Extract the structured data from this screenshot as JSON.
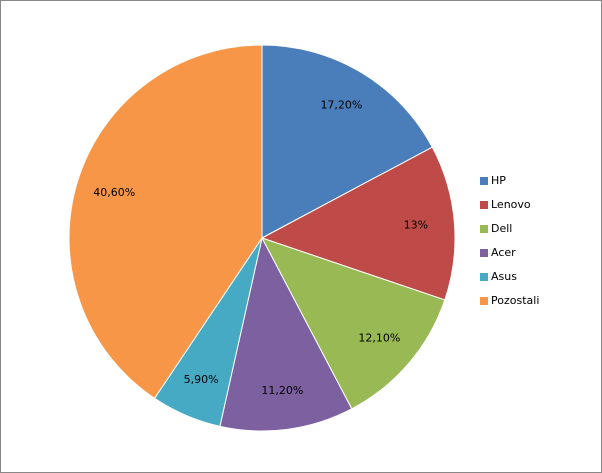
{
  "chart_data": {
    "type": "pie",
    "categories": [
      "HP",
      "Lenovo",
      "Dell",
      "Acer",
      "Asus",
      "Pozostali"
    ],
    "values": [
      17.2,
      13,
      12.1,
      11.2,
      5.9,
      40.6
    ],
    "value_labels": [
      "17,20%",
      "13%",
      "12,10%",
      "11,20%",
      "5,90%",
      "40,60%"
    ],
    "colors": [
      "#4a7ebb",
      "#be4b48",
      "#98b954",
      "#7d60a0",
      "#46aac5",
      "#f79646"
    ],
    "legend": "right"
  }
}
